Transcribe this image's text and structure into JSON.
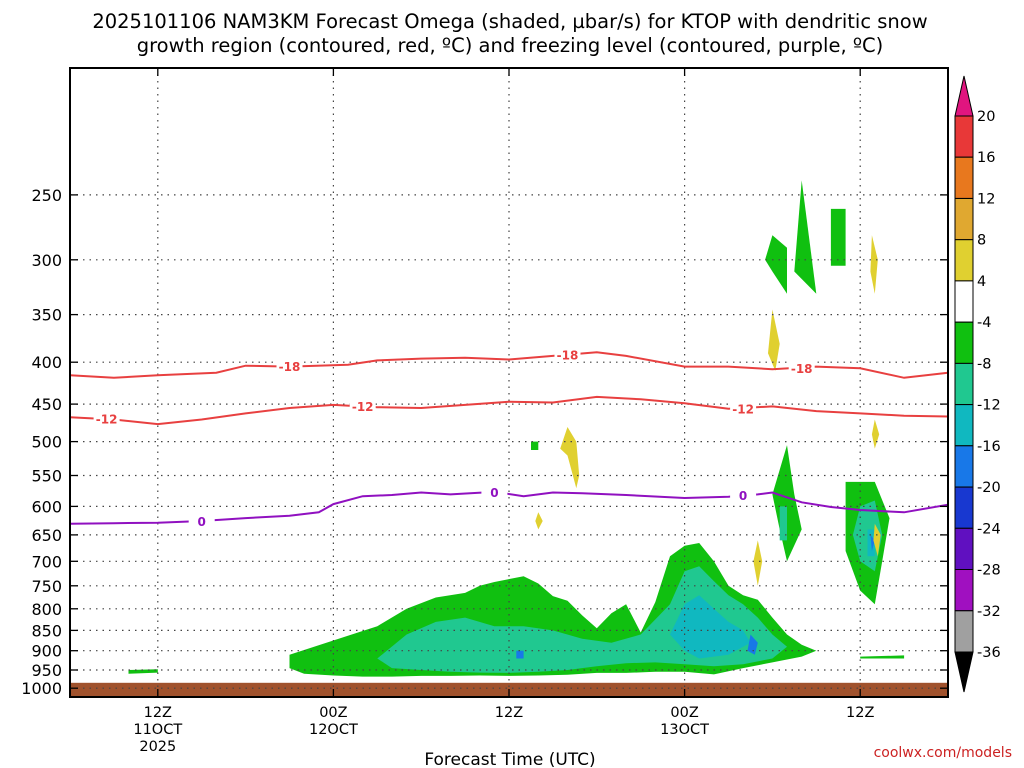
{
  "chart_data": {
    "type": "heatmap",
    "title_line1": "2025101106 NAM3KM Forecast Omega (shaded, µbar/s) for KTOP with dendritic snow",
    "title_line2": "growth region (contoured, red, ºC) and freezing level (contoured, purple, ºC)",
    "xlabel": "Forecast Time (UTC)",
    "ylabel": "",
    "credit": "coolwx.com/models",
    "x_range_hours": [
      0,
      60
    ],
    "x_ticks": [
      {
        "h": 6,
        "lines": [
          "12Z",
          "11OCT",
          "2025"
        ]
      },
      {
        "h": 18,
        "lines": [
          "00Z",
          "12OCT"
        ]
      },
      {
        "h": 30,
        "lines": [
          "12Z"
        ]
      },
      {
        "h": 42,
        "lines": [
          "00Z",
          "13OCT"
        ]
      },
      {
        "h": 54,
        "lines": [
          "12Z"
        ]
      }
    ],
    "y_scale": "log-pressure",
    "y_range_hpa": [
      1025,
      175
    ],
    "y_ticks": [
      250,
      300,
      350,
      400,
      450,
      500,
      550,
      600,
      650,
      700,
      750,
      800,
      850,
      900,
      950,
      1000
    ],
    "ground_level_hpa": 985,
    "colorbar": {
      "labels": [
        "20",
        "16",
        "12",
        "8",
        "4",
        "-4",
        "-8",
        "-12",
        "-16",
        "-20",
        "-24",
        "-28",
        "-32",
        "-36"
      ],
      "colors": [
        "#e0157f",
        "#e83838",
        "#e8781e",
        "#e0a830",
        "#e0d030",
        "#ffffff",
        "#10c010",
        "#20c890",
        "#10b8c0",
        "#1878e8",
        "#1838d0",
        "#6010c0",
        "#a010c0",
        "#a0a0a0",
        "#000000"
      ]
    },
    "contours": [
      {
        "value": -18,
        "label": "-18",
        "color": "#e84040",
        "points": [
          [
            0,
            415
          ],
          [
            3,
            418
          ],
          [
            6,
            415
          ],
          [
            10,
            412
          ],
          [
            12,
            404
          ],
          [
            15,
            405
          ],
          [
            19,
            403
          ],
          [
            21,
            398
          ],
          [
            24,
            396
          ],
          [
            27,
            395
          ],
          [
            30,
            397
          ],
          [
            33,
            393
          ],
          [
            36,
            389
          ],
          [
            38,
            393
          ],
          [
            42,
            405
          ],
          [
            45,
            405
          ],
          [
            48,
            408
          ],
          [
            51,
            405
          ],
          [
            54,
            407
          ],
          [
            57,
            418
          ],
          [
            60,
            412
          ]
        ],
        "label_at": [
          [
            15,
            405
          ],
          [
            34,
            392
          ],
          [
            50,
            407
          ]
        ]
      },
      {
        "value": -12,
        "label": "-12",
        "color": "#e84040",
        "points": [
          [
            0,
            467
          ],
          [
            3,
            470
          ],
          [
            6,
            476
          ],
          [
            9,
            470
          ],
          [
            12,
            462
          ],
          [
            15,
            455
          ],
          [
            18,
            451
          ],
          [
            21,
            454
          ],
          [
            24,
            455
          ],
          [
            27,
            451
          ],
          [
            30,
            447
          ],
          [
            33,
            448
          ],
          [
            36,
            441
          ],
          [
            39,
            444
          ],
          [
            42,
            449
          ],
          [
            45,
            456
          ],
          [
            48,
            453
          ],
          [
            51,
            459
          ],
          [
            54,
            462
          ],
          [
            57,
            465
          ],
          [
            60,
            466
          ]
        ],
        "label_at": [
          [
            2.5,
            469
          ],
          [
            20,
            453
          ],
          [
            46,
            456
          ]
        ]
      },
      {
        "value": 0,
        "label": "0",
        "color": "#9010c0",
        "points": [
          [
            0,
            630
          ],
          [
            3,
            629
          ],
          [
            6,
            628
          ],
          [
            9,
            625
          ],
          [
            12,
            620
          ],
          [
            15,
            616
          ],
          [
            17,
            610
          ],
          [
            18,
            596
          ],
          [
            20,
            583
          ],
          [
            22,
            581
          ],
          [
            24,
            577
          ],
          [
            26,
            580
          ],
          [
            29,
            576
          ],
          [
            31,
            583
          ],
          [
            33,
            577
          ],
          [
            35,
            578
          ],
          [
            38,
            581
          ],
          [
            42,
            586
          ],
          [
            45,
            584
          ],
          [
            47,
            580
          ],
          [
            48,
            577
          ],
          [
            50,
            593
          ],
          [
            52,
            601
          ],
          [
            54,
            606
          ],
          [
            57,
            610
          ],
          [
            60,
            597
          ]
        ],
        "label_at": [
          [
            9,
            626
          ],
          [
            29,
            577
          ],
          [
            46,
            582
          ]
        ]
      }
    ],
    "omega_regions": [
      {
        "bin": "-4",
        "polygons": [
          [
            [
              15,
              910
            ],
            [
              21,
              840
            ],
            [
              23,
              800
            ],
            [
              25,
              775
            ],
            [
              27,
              765
            ],
            [
              28,
              750
            ],
            [
              29,
              742
            ],
            [
              31,
              730
            ],
            [
              32,
              745
            ],
            [
              33,
              772
            ],
            [
              34,
              782
            ],
            [
              35,
              815
            ],
            [
              36,
              845
            ],
            [
              37,
              810
            ],
            [
              38,
              790
            ],
            [
              39,
              855
            ],
            [
              40,
              785
            ],
            [
              41,
              690
            ],
            [
              42,
              670
            ],
            [
              43,
              665
            ],
            [
              44,
              700
            ],
            [
              45,
              750
            ],
            [
              46,
              770
            ],
            [
              47,
              780
            ],
            [
              48,
              820
            ],
            [
              49,
              860
            ],
            [
              50,
              885
            ],
            [
              51,
              900
            ],
            [
              50,
              915
            ],
            [
              48,
              930
            ],
            [
              46,
              945
            ],
            [
              44,
              962
            ],
            [
              42,
              955
            ],
            [
              40,
              955
            ],
            [
              38,
              958
            ],
            [
              36,
              958
            ],
            [
              34,
              963
            ],
            [
              32,
              965
            ],
            [
              30,
              966
            ],
            [
              28,
              965
            ],
            [
              26,
              966
            ],
            [
              24,
              966
            ],
            [
              22,
              968
            ],
            [
              20,
              968
            ],
            [
              18,
              965
            ],
            [
              16,
              960
            ],
            [
              15,
              945
            ]
          ],
          [
            [
              4,
              950
            ],
            [
              6,
              948
            ],
            [
              6,
              957
            ],
            [
              4,
              960
            ]
          ],
          [
            [
              48,
              280
            ],
            [
              49,
              290
            ],
            [
              49,
              330
            ],
            [
              48,
              310
            ],
            [
              47.5,
              300
            ]
          ],
          [
            [
              50,
              240
            ],
            [
              51,
              330
            ],
            [
              49.5,
              310
            ]
          ],
          [
            [
              52,
              260
            ],
            [
              53,
              260
            ],
            [
              53,
              305
            ],
            [
              52,
              305
            ]
          ],
          [
            [
              49,
              505
            ],
            [
              49.5,
              580
            ],
            [
              50,
              640
            ],
            [
              49,
              700
            ],
            [
              48.5,
              640
            ],
            [
              48,
              580
            ]
          ],
          [
            [
              53,
              560
            ],
            [
              55,
              560
            ],
            [
              56,
              620
            ],
            [
              55.5,
              700
            ],
            [
              55,
              790
            ],
            [
              54,
              760
            ],
            [
              53,
              680
            ]
          ],
          [
            [
              54,
              915
            ],
            [
              57,
              912
            ],
            [
              57,
              920
            ],
            [
              54,
              920
            ]
          ],
          [
            [
              31.5,
              500
            ],
            [
              32,
              500
            ],
            [
              32,
              512
            ],
            [
              31.5,
              512
            ]
          ]
        ]
      },
      {
        "bin": "-8",
        "polygons": [
          [
            [
              23,
              860
            ],
            [
              25,
              830
            ],
            [
              27,
              820
            ],
            [
              29,
              840
            ],
            [
              31,
              840
            ],
            [
              33,
              850
            ],
            [
              35,
              870
            ],
            [
              37,
              880
            ],
            [
              39,
              860
            ],
            [
              41,
              790
            ],
            [
              42,
              720
            ],
            [
              43,
              710
            ],
            [
              44,
              740
            ],
            [
              45,
              770
            ],
            [
              46,
              790
            ],
            [
              47,
              820
            ],
            [
              48,
              860
            ],
            [
              49,
              890
            ],
            [
              48,
              920
            ],
            [
              46,
              935
            ],
            [
              44,
              940
            ],
            [
              42,
              935
            ],
            [
              40,
              930
            ],
            [
              38,
              932
            ],
            [
              36,
              940
            ],
            [
              34,
              950
            ],
            [
              32,
              955
            ],
            [
              30,
              958
            ],
            [
              28,
              957
            ],
            [
              26,
              955
            ],
            [
              24,
              950
            ],
            [
              22,
              945
            ],
            [
              21,
              920
            ]
          ],
          [
            [
              54,
              600
            ],
            [
              55,
              590
            ],
            [
              55.5,
              650
            ],
            [
              55,
              720
            ],
            [
              54,
              700
            ],
            [
              53.5,
              650
            ]
          ],
          [
            [
              48.5,
              600
            ],
            [
              49,
              600
            ],
            [
              49,
              660
            ],
            [
              48.5,
              660
            ]
          ]
        ]
      },
      {
        "bin": "-12",
        "polygons": [
          [
            [
              42,
              790
            ],
            [
              43,
              770
            ],
            [
              44,
              800
            ],
            [
              45,
              830
            ],
            [
              46,
              850
            ],
            [
              46.5,
              880
            ],
            [
              45,
              910
            ],
            [
              43,
              920
            ],
            [
              42,
              900
            ],
            [
              41,
              860
            ]
          ],
          [
            [
              54.5,
              640
            ],
            [
              55,
              640
            ],
            [
              55,
              690
            ],
            [
              54.5,
              690
            ]
          ]
        ]
      },
      {
        "bin": "-16",
        "polygons": [
          [
            [
              46.5,
              860
            ],
            [
              47,
              880
            ],
            [
              46.8,
              910
            ],
            [
              46.3,
              900
            ]
          ],
          [
            [
              54.7,
              650
            ],
            [
              55,
              660
            ],
            [
              54.8,
              680
            ]
          ],
          [
            [
              30.5,
              900
            ],
            [
              31,
              900
            ],
            [
              31,
              920
            ],
            [
              30.5,
              920
            ]
          ]
        ]
      },
      {
        "bin": "4",
        "polygons": [
          [
            [
              54.8,
              280
            ],
            [
              55.2,
              300
            ],
            [
              55,
              330
            ],
            [
              54.7,
              310
            ]
          ],
          [
            [
              48,
              345
            ],
            [
              48.5,
              380
            ],
            [
              48.2,
              410
            ],
            [
              47.7,
              390
            ]
          ],
          [
            [
              34,
              480
            ],
            [
              34.6,
              500
            ],
            [
              34.8,
              550
            ],
            [
              34.6,
              570
            ],
            [
              34,
              520
            ],
            [
              33.5,
              510
            ]
          ],
          [
            [
              47,
              660
            ],
            [
              47.3,
              700
            ],
            [
              47,
              750
            ],
            [
              46.7,
              700
            ]
          ],
          [
            [
              55,
              470
            ],
            [
              55.3,
              490
            ],
            [
              55,
              510
            ],
            [
              54.8,
              490
            ]
          ],
          [
            [
              55,
              630
            ],
            [
              55.4,
              650
            ],
            [
              55.2,
              690
            ],
            [
              54.9,
              660
            ]
          ],
          [
            [
              32,
              610
            ],
            [
              32.3,
              625
            ],
            [
              32,
              640
            ],
            [
              31.8,
              625
            ]
          ]
        ]
      }
    ]
  }
}
